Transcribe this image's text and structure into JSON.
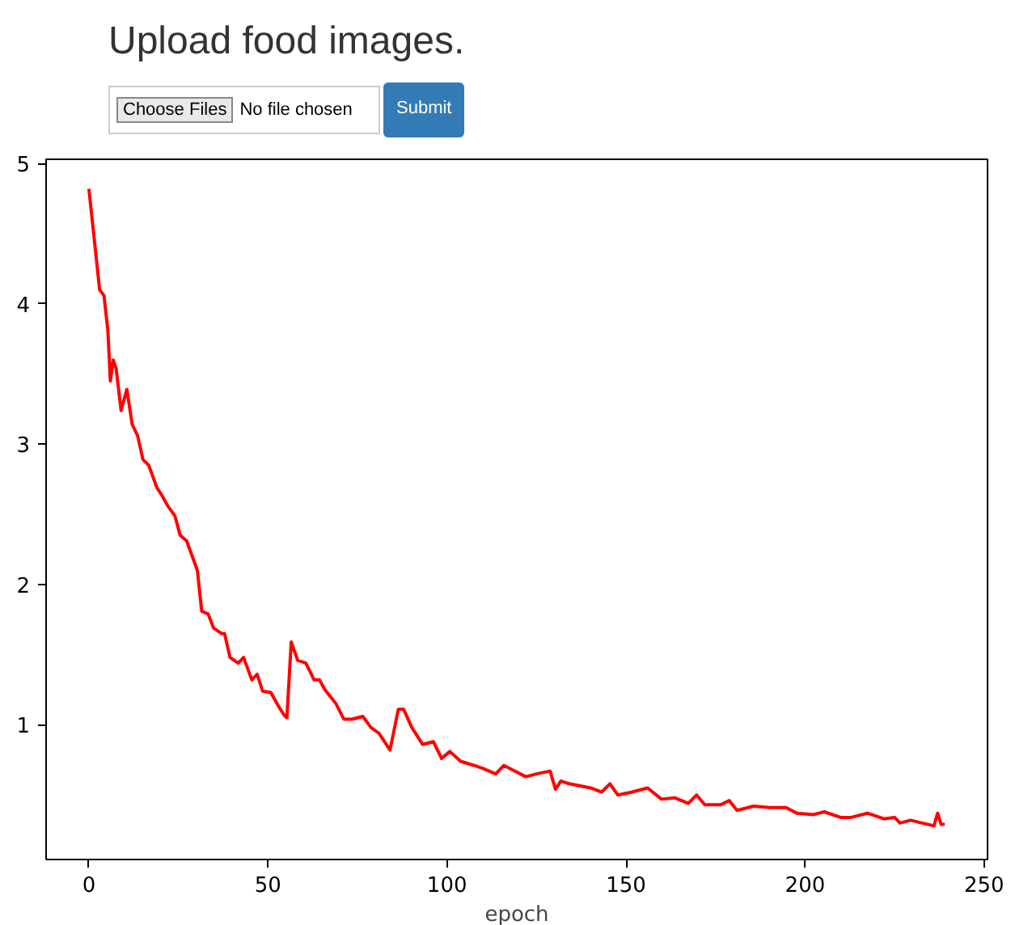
{
  "chart_data": {
    "type": "line",
    "title": "Upload food images.",
    "xlabel": "epoch",
    "annotations": [
      "Choose Files",
      "No file chosen",
      "Submit"
    ],
    "x": [
      0,
      3,
      4.2,
      5.3,
      6,
      6.8,
      7.6,
      9,
      10.6,
      12.1,
      13.6,
      15.1,
      16.7,
      19,
      20.5,
      22,
      24,
      25.5,
      27.3,
      30.3,
      31.5,
      33.3,
      34.8,
      37.1,
      37.9,
      39.4,
      41.7,
      43.2,
      45.5,
      47,
      48.5,
      50.8,
      53,
      54.5,
      55.3,
      56.5,
      58.3,
      60.6,
      62.9,
      64.4,
      65.9,
      69,
      71.2,
      73.5,
      76.5,
      78.8,
      81,
      84.1,
      86.4,
      87.9,
      90.2,
      93.2,
      96.2,
      98.5,
      100.8,
      103.8,
      107.6,
      109.9,
      113.6,
      115.9,
      119,
      122,
      125,
      128.8,
      130.3,
      131.8,
      134.1,
      140.1,
      143.2,
      145.5,
      147.7,
      151.5,
      156,
      159.9,
      163.6,
      167.4,
      169.7,
      172,
      176.5,
      178.8,
      181,
      185.6,
      190.1,
      194.7,
      197.7,
      202.3,
      205.3,
      209.9,
      212.9,
      217.4,
      222,
      225,
      226.5,
      229.5,
      232.6,
      236,
      237,
      238,
      239
    ],
    "series": [
      {
        "color": "#ff0000",
        "values": [
          4.82,
          4.1,
          4.06,
          3.81,
          3.45,
          3.6,
          3.54,
          3.24,
          3.39,
          3.14,
          3.06,
          2.89,
          2.85,
          2.69,
          2.63,
          2.56,
          2.49,
          2.35,
          2.31,
          2.1,
          1.81,
          1.79,
          1.69,
          1.65,
          1.65,
          1.48,
          1.44,
          1.48,
          1.32,
          1.36,
          1.24,
          1.23,
          1.13,
          1.07,
          1.05,
          1.59,
          1.46,
          1.44,
          1.32,
          1.32,
          1.25,
          1.15,
          1.04,
          1.04,
          1.06,
          0.98,
          0.94,
          0.82,
          1.11,
          1.11,
          0.98,
          0.86,
          0.88,
          0.76,
          0.81,
          0.74,
          0.71,
          0.69,
          0.65,
          0.71,
          0.67,
          0.63,
          0.65,
          0.67,
          0.54,
          0.6,
          0.58,
          0.55,
          0.52,
          0.58,
          0.5,
          0.52,
          0.55,
          0.47,
          0.48,
          0.44,
          0.5,
          0.43,
          0.43,
          0.46,
          0.39,
          0.42,
          0.41,
          0.41,
          0.37,
          0.36,
          0.38,
          0.34,
          0.34,
          0.37,
          0.33,
          0.34,
          0.3,
          0.32,
          0.3,
          0.28,
          0.37,
          0.29,
          0.29
        ]
      }
    ],
    "xlim": [
      -11.95,
      250.95
    ],
    "ylim": [
      0.04,
      5.03
    ],
    "xticks": [
      0,
      50,
      100,
      150,
      200,
      250
    ],
    "yticks": [
      1,
      2,
      3,
      4,
      5
    ],
    "grid": false,
    "marker": "none",
    "line_style": "solid"
  }
}
